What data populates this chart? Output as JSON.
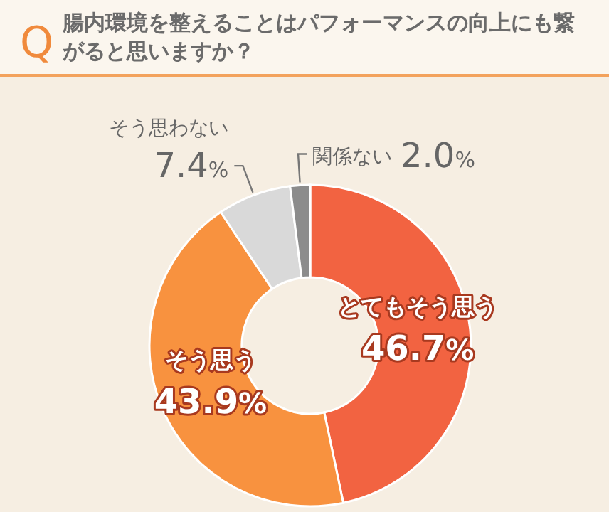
{
  "chart_data": {
    "type": "donut",
    "title": "腸内環境を整えることはパフォーマンスの向上にも繋がると思いますか？",
    "annotations": [
      "Q"
    ],
    "categories": [
      "とてもそう思う",
      "そう思う",
      "そう思わない",
      "関係ない"
    ],
    "values": [
      46.7,
      43.9,
      7.4,
      2.0
    ],
    "colors": [
      "#f26341",
      "#f8923f",
      "#d9d9d9",
      "#8c8c8c"
    ],
    "value_labels": [
      "46.7%",
      "43.9%",
      "7.4%",
      "2.0%"
    ],
    "legend": false
  }
}
